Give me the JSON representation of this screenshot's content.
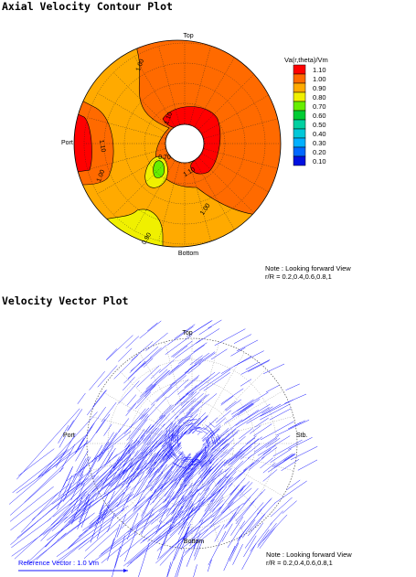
{
  "chart_data": [
    {
      "type": "contour",
      "title": "Axial Velocity Contour Plot",
      "position_labels": {
        "top": "Top",
        "bottom": "Bottom",
        "port": "Port"
      },
      "legend": {
        "title": "Va(r,theta)/Vm",
        "levels": [
          {
            "value": "1.10",
            "color": "#ff0000"
          },
          {
            "value": "1.00",
            "color": "#ff6a00"
          },
          {
            "value": "0.90",
            "color": "#ffaa00"
          },
          {
            "value": "0.80",
            "color": "#f0f000"
          },
          {
            "value": "0.70",
            "color": "#66ee00"
          },
          {
            "value": "0.60",
            "color": "#00cc33"
          },
          {
            "value": "0.50",
            "color": "#00d0a0"
          },
          {
            "value": "0.40",
            "color": "#00c8d8"
          },
          {
            "value": "0.30",
            "color": "#00b0ff"
          },
          {
            "value": "0.20",
            "color": "#0068ff"
          },
          {
            "value": "0.10",
            "color": "#0010e0"
          }
        ]
      },
      "contour_labels": [
        "1.00",
        "1.10",
        "1.10",
        "1.00",
        "0.70",
        "1.10",
        "1.00",
        "0.90"
      ],
      "note": {
        "line1": "Note : Looking forward View",
        "line2": "r/R = 0.2,0.4,0.6,0.8,1"
      }
    },
    {
      "type": "vector",
      "title": "Velocity Vector Plot",
      "position_labels": {
        "top": "Top",
        "bottom": "Bottom",
        "port": "Port",
        "stb": "Stb."
      },
      "reference_vector": "Reference Vector : 1.0 Vm",
      "note": {
        "line1": "Note : Looking forward View",
        "line2": "r/R = 0.2,0.4,0.6,0.8,1"
      }
    }
  ],
  "colors": {
    "vector": "#1a1aff",
    "grid": "#333333"
  }
}
